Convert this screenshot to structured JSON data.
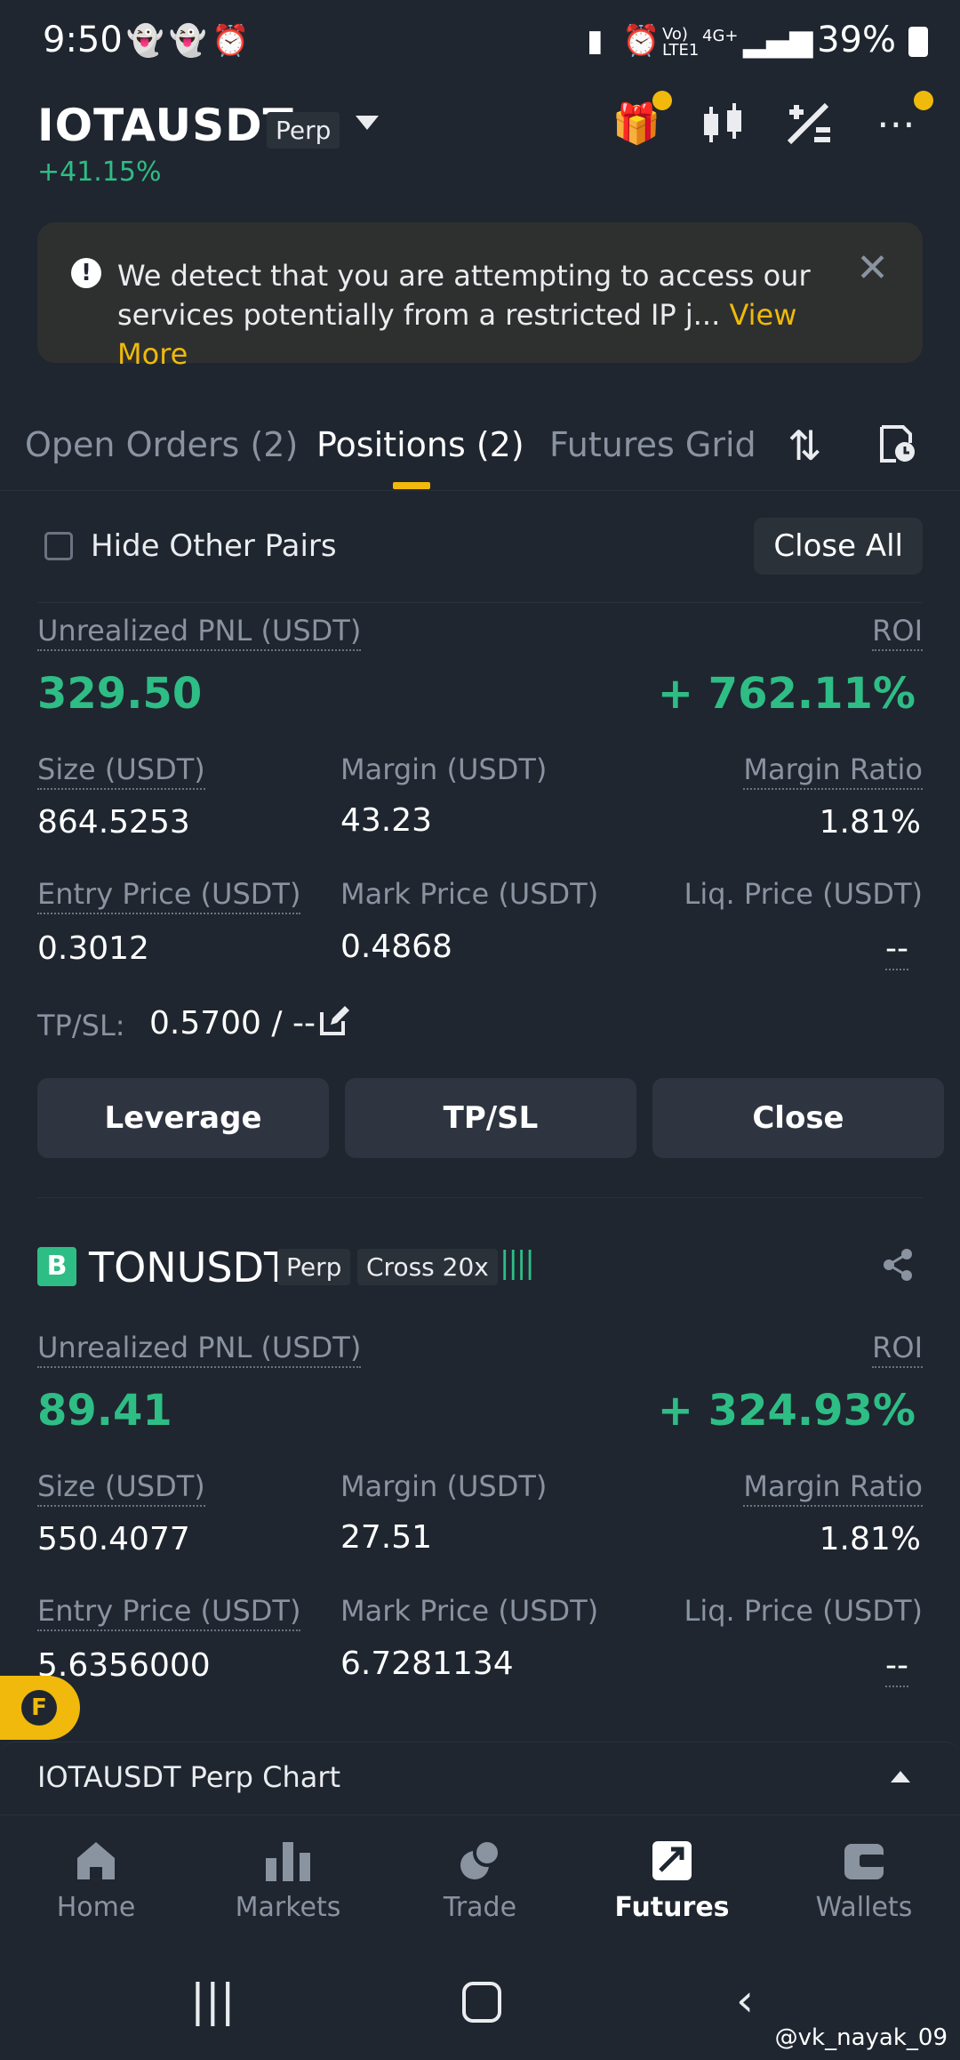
{
  "status_bar": {
    "time": "9:50",
    "network_1": "Vo) LTE1",
    "network_2": "4G+",
    "battery": "39%"
  },
  "header": {
    "pair": "IOTAUSDT",
    "perp_tag": "Perp",
    "change": "+41.15%"
  },
  "banner": {
    "message": "We detect that you are attempting to access our services potentially from a restricted IP j...",
    "link": "View More"
  },
  "tabs": [
    {
      "label": "Open Orders (2)"
    },
    {
      "label": "Positions (2)"
    },
    {
      "label": "Futures Grid"
    }
  ],
  "controls": {
    "hide_other_pairs": "Hide Other Pairs",
    "close_all": "Close All"
  },
  "position1": {
    "pnl_label": "Unrealized PNL (USDT)",
    "pnl": "329.50",
    "roi_label": "ROI",
    "roi": "+ 762.11%",
    "size_label": "Size (USDT)",
    "size": "864.5253",
    "margin_label": "Margin (USDT)",
    "margin": "43.23",
    "margin_ratio_label": "Margin Ratio",
    "margin_ratio": "1.81%",
    "entry_label": "Entry Price (USDT)",
    "entry": "0.3012",
    "mark_label": "Mark Price (USDT)",
    "mark": "0.4868",
    "liq_label": "Liq. Price (USDT)",
    "liq": "--",
    "tpsl_label": "TP/SL:",
    "tpsl": "0.5700 / --",
    "btn_leverage": "Leverage",
    "btn_tpsl": "TP/SL",
    "btn_close": "Close"
  },
  "position2": {
    "side_badge": "B",
    "pair": "TONUSDT",
    "perp_tag": "Perp",
    "cross_tag": "Cross 20x",
    "pnl_label": "Unrealized PNL (USDT)",
    "pnl": "89.41",
    "roi_label": "ROI",
    "roi": "+ 324.93%",
    "size_label": "Size (USDT)",
    "size": "550.4077",
    "margin_label": "Margin (USDT)",
    "margin": "27.51",
    "margin_ratio_label": "Margin Ratio",
    "margin_ratio": "1.81%",
    "entry_label": "Entry Price (USDT)",
    "entry": "5.6356000",
    "mark_label": "Mark Price (USDT)",
    "mark": "6.7281134",
    "liq_label": "Liq. Price (USDT)",
    "liq": "--"
  },
  "chart_bar": {
    "title": "IOTAUSDT Perp Chart"
  },
  "nav": [
    {
      "label": "Home"
    },
    {
      "label": "Markets"
    },
    {
      "label": "Trade"
    },
    {
      "label": "Futures"
    },
    {
      "label": "Wallets"
    }
  ],
  "watermark": "@vk_nayak_09",
  "colors": {
    "accent": "#f0b90b",
    "positive": "#2ebd85",
    "background": "#1f2630"
  }
}
